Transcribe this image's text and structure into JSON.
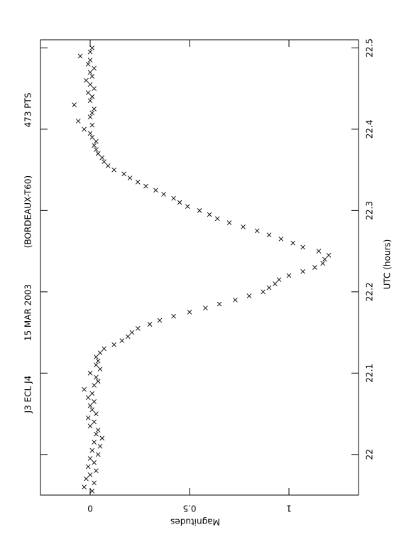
{
  "chart_data": {
    "type": "scatter",
    "annotations": [
      "J3 ECL J4",
      "15 MAR 2003",
      "(BORDEAUX-T60)",
      "473 PTS"
    ],
    "xlabel": "UTC (hours)",
    "ylabel": "Magnitudes",
    "xlim": [
      21.95,
      22.51
    ],
    "ylim": [
      -0.25,
      1.35
    ],
    "xticks": [
      22,
      22.1,
      22.2,
      22.3,
      22.4,
      22.5
    ],
    "yticks": [
      0,
      0.5,
      1
    ],
    "color": "#000000",
    "x": [
      21.955,
      21.96,
      21.965,
      21.97,
      21.975,
      21.98,
      21.985,
      21.99,
      21.995,
      22.0,
      22.005,
      22.01,
      22.015,
      22.02,
      22.025,
      22.03,
      22.035,
      22.04,
      22.045,
      22.05,
      22.055,
      22.06,
      22.065,
      22.07,
      22.075,
      22.08,
      22.085,
      22.09,
      22.095,
      22.1,
      22.105,
      22.11,
      22.115,
      22.12,
      22.125,
      22.13,
      22.135,
      22.14,
      22.145,
      22.15,
      22.155,
      22.16,
      22.165,
      22.17,
      22.175,
      22.18,
      22.185,
      22.19,
      22.195,
      22.2,
      22.205,
      22.21,
      22.215,
      22.22,
      22.225,
      22.23,
      22.235,
      22.24,
      22.245,
      22.25,
      22.255,
      22.26,
      22.265,
      22.27,
      22.275,
      22.28,
      22.285,
      22.29,
      22.295,
      22.3,
      22.305,
      22.31,
      22.315,
      22.32,
      22.325,
      22.33,
      22.335,
      22.34,
      22.345,
      22.35,
      22.355,
      22.36,
      22.365,
      22.37,
      22.375,
      22.38,
      22.385,
      22.39,
      22.395,
      22.4,
      22.405,
      22.41,
      22.415,
      22.42,
      22.425,
      22.43,
      22.435,
      22.44,
      22.445,
      22.45,
      22.455,
      22.46,
      22.465,
      22.47,
      22.475,
      22.48,
      22.485,
      22.49,
      22.495,
      22.5
    ],
    "values": [
      0.01,
      -0.03,
      0.02,
      -0.02,
      0.0,
      0.03,
      -0.01,
      0.02,
      0.0,
      0.04,
      0.01,
      0.05,
      0.02,
      0.06,
      0.03,
      0.04,
      0.0,
      0.02,
      -0.01,
      0.03,
      0.01,
      0.0,
      0.02,
      -0.01,
      0.01,
      -0.03,
      0.02,
      0.04,
      0.03,
      0.0,
      0.05,
      0.03,
      0.04,
      0.03,
      0.05,
      0.07,
      0.12,
      0.16,
      0.19,
      0.21,
      0.24,
      0.3,
      0.35,
      0.42,
      0.5,
      0.58,
      0.65,
      0.73,
      0.8,
      0.87,
      0.9,
      0.93,
      0.95,
      1.0,
      1.07,
      1.13,
      1.17,
      1.18,
      1.2,
      1.15,
      1.07,
      1.02,
      0.96,
      0.9,
      0.84,
      0.77,
      0.7,
      0.64,
      0.6,
      0.55,
      0.49,
      0.45,
      0.42,
      0.37,
      0.33,
      0.28,
      0.24,
      0.2,
      0.17,
      0.12,
      0.09,
      0.07,
      0.06,
      0.04,
      0.03,
      0.02,
      0.03,
      0.01,
      0.0,
      -0.03,
      0.01,
      -0.06,
      0.0,
      0.01,
      0.02,
      -0.08,
      0.0,
      0.01,
      -0.01,
      0.02,
      0.0,
      -0.02,
      0.01,
      0.0,
      0.02,
      -0.01,
      0.0,
      -0.05,
      0.0,
      0.01
    ]
  }
}
